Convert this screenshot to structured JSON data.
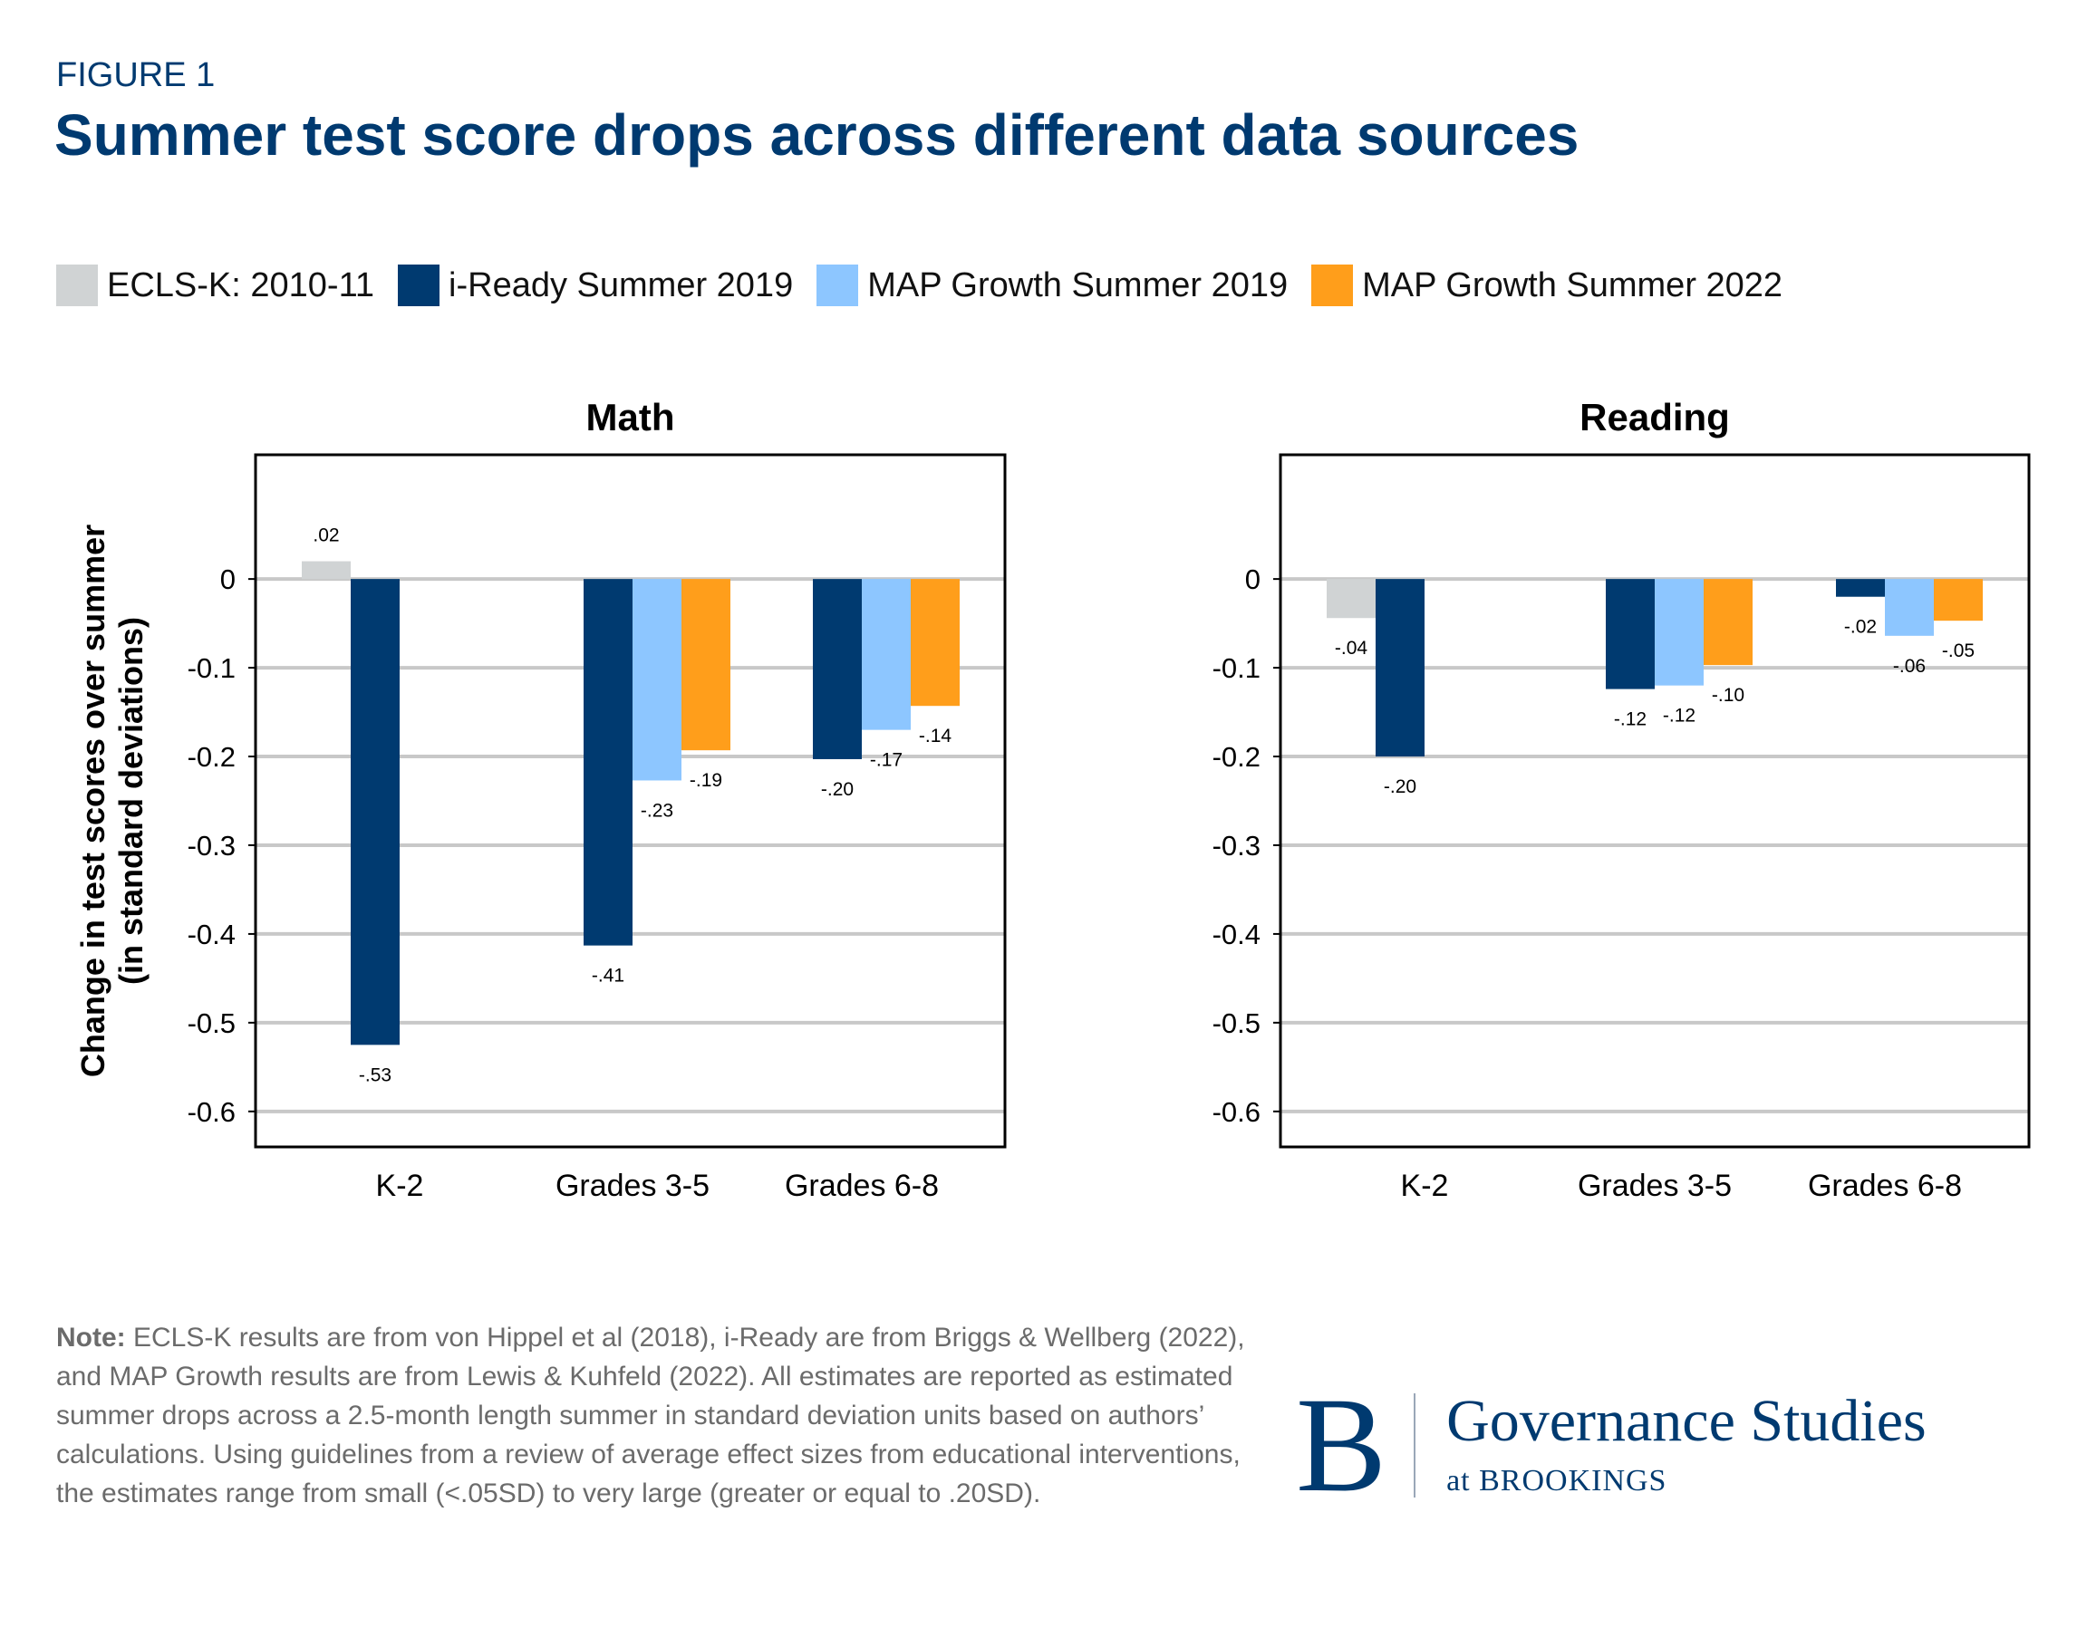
{
  "header": {
    "figure_label": "FIGURE 1",
    "title": "Summer test score drops across different data sources"
  },
  "colors": {
    "ECLS-K: 2010-11": "#D0D3D4",
    "i-Ready Summer 2019": "#003A70",
    "MAP Growth Summer 2019": "#8DC6FF",
    "MAP Growth Summer 2022": "#FF9E1B",
    "title": "#003A70",
    "gridline": "#C8C8C8"
  },
  "chart_data": [
    {
      "type": "bar",
      "title": "Math",
      "ylabel": "Change in test scores over summer (in standard deviations)",
      "ylabel_lines": [
        "Change in test scores over summer",
        "(in standard deviations)"
      ],
      "categories": [
        "K-2",
        "Grades 3-5",
        "Grades 6-8"
      ],
      "yticks": [
        "0",
        "-0.1",
        "-0.2",
        "-0.3",
        "-0.4",
        "-0.5",
        "-0.6"
      ],
      "ylim": [
        -0.64,
        0.14
      ],
      "grid": true,
      "legend": "top",
      "series": [
        {
          "name": "ECLS-K: 2010-11",
          "values": [
            0.02,
            null,
            null
          ],
          "labels": [
            ".02",
            null,
            null
          ]
        },
        {
          "name": "i-Ready Summer 2019",
          "values": [
            -0.525,
            -0.413,
            -0.203
          ],
          "labels": [
            "-.53",
            "-.41",
            "-.20"
          ]
        },
        {
          "name": "MAP Growth Summer 2019",
          "values": [
            null,
            -0.227,
            -0.17
          ],
          "labels": [
            null,
            "-.23",
            "-.17"
          ]
        },
        {
          "name": "MAP Growth Summer 2022",
          "values": [
            null,
            -0.193,
            -0.143
          ],
          "labels": [
            null,
            "-.19",
            "-.14"
          ]
        }
      ]
    },
    {
      "type": "bar",
      "title": "Reading",
      "categories": [
        "K-2",
        "Grades 3-5",
        "Grades 6-8"
      ],
      "yticks": [
        "0",
        "-0.1",
        "-0.2",
        "-0.3",
        "-0.4",
        "-0.5",
        "-0.6"
      ],
      "ylim": [
        -0.64,
        0.14
      ],
      "grid": true,
      "series": [
        {
          "name": "ECLS-K: 2010-11",
          "values": [
            -0.044,
            null,
            null
          ],
          "labels": [
            "-.04",
            null,
            null
          ]
        },
        {
          "name": "i-Ready Summer 2019",
          "values": [
            -0.2,
            -0.124,
            -0.02
          ],
          "labels": [
            "-.20",
            "-.12",
            "-.02"
          ]
        },
        {
          "name": "MAP Growth Summer 2019",
          "values": [
            null,
            -0.12,
            -0.064
          ],
          "labels": [
            null,
            "-.12",
            "-.06"
          ]
        },
        {
          "name": "MAP Growth Summer 2022",
          "values": [
            null,
            -0.097,
            -0.047
          ],
          "labels": [
            null,
            "-.10",
            "-.05"
          ]
        }
      ]
    }
  ],
  "legend": [
    {
      "label": "ECLS-K: 2010-11",
      "color": "#D0D3D4"
    },
    {
      "label": "i-Ready Summer 2019",
      "color": "#003A70"
    },
    {
      "label": "MAP Growth Summer 2019",
      "color": "#8DC6FF"
    },
    {
      "label": "MAP Growth Summer 2022",
      "color": "#FF9E1B"
    }
  ],
  "note": {
    "bold": "Note:",
    "text": " ECLS-K results are from von Hippel et al (2018), i-Ready are from Briggs & Wellberg (2022), and MAP Growth results are from Lewis & Kuhfeld (2022). All estimates are reported as estimated summer drops across a 2.5-month length summer in standard deviation units based on authors’ calculations. Using guidelines from a review of average effect sizes from educational interventions, the estimates range from small (<.05SD) to very large (greater or equal to .20SD)."
  },
  "logo": {
    "letter": "B",
    "name": "Governance Studies",
    "sub": "at BROOKINGS"
  }
}
